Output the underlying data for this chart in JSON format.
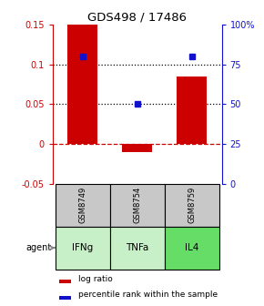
{
  "title": "GDS498 / 17486",
  "samples": [
    "GSM8749",
    "GSM8754",
    "GSM8759"
  ],
  "agents": [
    "IFNg",
    "TNFa",
    "IL4"
  ],
  "log_ratios": [
    0.15,
    -0.01,
    0.085
  ],
  "percentile_ranks": [
    80,
    50,
    80
  ],
  "bar_color": "#cc0000",
  "dot_color": "#1111cc",
  "ylim_left": [
    -0.05,
    0.15
  ],
  "yticks_left": [
    -0.05,
    0,
    0.05,
    0.1,
    0.15
  ],
  "ytick_labels_left": [
    "-0.05",
    "0",
    "0.05",
    "0.1",
    "0.15"
  ],
  "ylim_right": [
    0,
    100
  ],
  "yticks_right": [
    0,
    25,
    50,
    75,
    100
  ],
  "ytick_labels_right": [
    "0",
    "25",
    "50",
    "75",
    "100%"
  ],
  "dotted_lines": [
    0.05,
    0.1
  ],
  "zero_line_color": "#cc0000",
  "gray_box_color": "#c8c8c8",
  "green_colors": [
    "#c8f0c8",
    "#c8f0c8",
    "#66dd66"
  ],
  "bar_width": 0.55,
  "agent_label": "agent",
  "legend_log": "log ratio",
  "legend_pct": "percentile rank within the sample"
}
